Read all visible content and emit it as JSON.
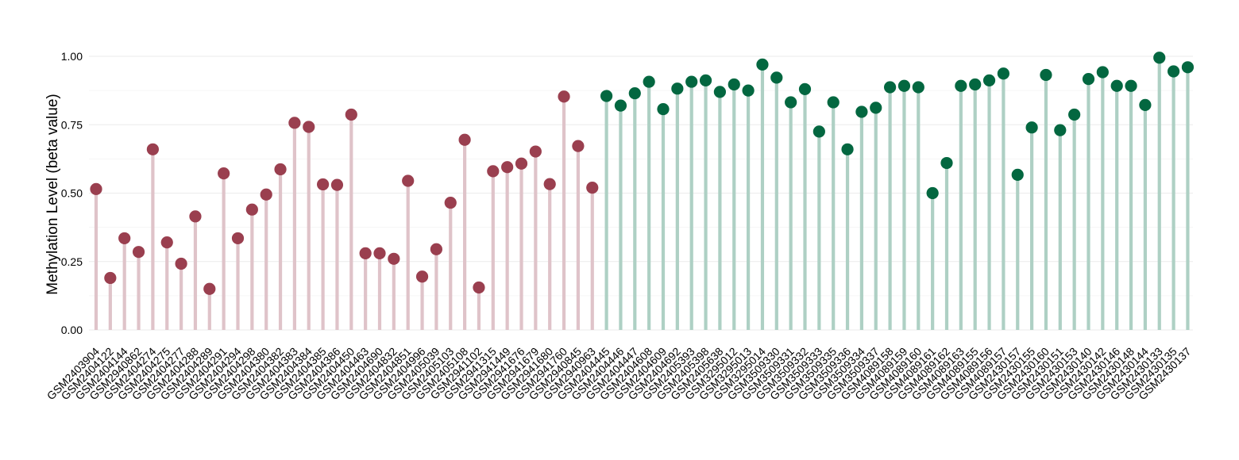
{
  "chart_data": {
    "type": "lollipop",
    "ylabel": "Methylation Level (beta value)",
    "ylim": [
      0,
      1.0
    ],
    "yticks": [
      "0.00",
      "0.25",
      "0.50",
      "0.75",
      "1.00"
    ],
    "ytick_values": [
      0,
      0.25,
      0.5,
      0.75,
      1.0
    ],
    "grid": true,
    "colors": {
      "group1_point": "#9a3f4f",
      "group1_stem": "#dfc3c9",
      "group2_point": "#036740",
      "group2_stem": "#aed0c4"
    },
    "categories": [
      "GSM2403904",
      "GSM2404122",
      "GSM2404144",
      "GSM2940862",
      "GSM2404274",
      "GSM2404275",
      "GSM2404277",
      "GSM2404288",
      "GSM2404289",
      "GSM2404291",
      "GSM2404294",
      "GSM2404298",
      "GSM2404380",
      "GSM2404382",
      "GSM2404383",
      "GSM2404384",
      "GSM2404385",
      "GSM2404386",
      "GSM2404450",
      "GSM2404463",
      "GSM2404690",
      "GSM2404832",
      "GSM2404851",
      "GSM2404996",
      "GSM2405039",
      "GSM2405103",
      "GSM2405108",
      "GSM2941102",
      "GSM2941315",
      "GSM2941449",
      "GSM2941676",
      "GSM2941679",
      "GSM2941680",
      "GSM2941760",
      "GSM2940845",
      "GSM2940963",
      "GSM2404445",
      "GSM2404446",
      "GSM2404447",
      "GSM2404608",
      "GSM2404609",
      "GSM2404692",
      "GSM2405393",
      "GSM2405398",
      "GSM2405638",
      "GSM3295012",
      "GSM3295013",
      "GSM3295014",
      "GSM3509330",
      "GSM3509331",
      "GSM3509332",
      "GSM3509333",
      "GSM3509335",
      "GSM3509336",
      "GSM3509334",
      "GSM3509337",
      "GSM4089158",
      "GSM4089159",
      "GSM4089160",
      "GSM4089161",
      "GSM4089162",
      "GSM4089163",
      "GSM4089155",
      "GSM4089156",
      "GSM4089157",
      "GSM2430157",
      "GSM2430155",
      "GSM2430160",
      "GSM2430151",
      "GSM2430153",
      "GSM2430140",
      "GSM2430142",
      "GSM2430146",
      "GSM2430148",
      "GSM2430144",
      "GSM2430133",
      "GSM2430135",
      "GSM2430137"
    ],
    "values": [
      0.515,
      0.19,
      0.335,
      0.285,
      0.66,
      0.32,
      0.242,
      0.415,
      0.15,
      0.572,
      0.335,
      0.44,
      0.495,
      0.587,
      0.757,
      0.742,
      0.532,
      0.53,
      0.787,
      0.28,
      0.28,
      0.26,
      0.545,
      0.195,
      0.295,
      0.465,
      0.695,
      0.155,
      0.58,
      0.595,
      0.608,
      0.652,
      0.533,
      0.853,
      0.672,
      0.52,
      0.855,
      0.82,
      0.865,
      0.907,
      0.807,
      0.882,
      0.907,
      0.912,
      0.87,
      0.897,
      0.875,
      0.97,
      0.922,
      0.832,
      0.88,
      0.725,
      0.832,
      0.66,
      0.797,
      0.812,
      0.887,
      0.892,
      0.887,
      0.5,
      0.61,
      0.892,
      0.897,
      0.912,
      0.937,
      0.567,
      0.74,
      0.932,
      0.73,
      0.787,
      0.917,
      0.942,
      0.892,
      0.892,
      0.822,
      0.995,
      0.945,
      0.96
    ],
    "groups": [
      1,
      1,
      1,
      1,
      1,
      1,
      1,
      1,
      1,
      1,
      1,
      1,
      1,
      1,
      1,
      1,
      1,
      1,
      1,
      1,
      1,
      1,
      1,
      1,
      1,
      1,
      1,
      1,
      1,
      1,
      1,
      1,
      1,
      1,
      1,
      1,
      2,
      2,
      2,
      2,
      2,
      2,
      2,
      2,
      2,
      2,
      2,
      2,
      2,
      2,
      2,
      2,
      2,
      2,
      2,
      2,
      2,
      2,
      2,
      2,
      2,
      2,
      2,
      2,
      2,
      2,
      2,
      2,
      2,
      2,
      2,
      2,
      2,
      2,
      2,
      2,
      2,
      2
    ]
  }
}
